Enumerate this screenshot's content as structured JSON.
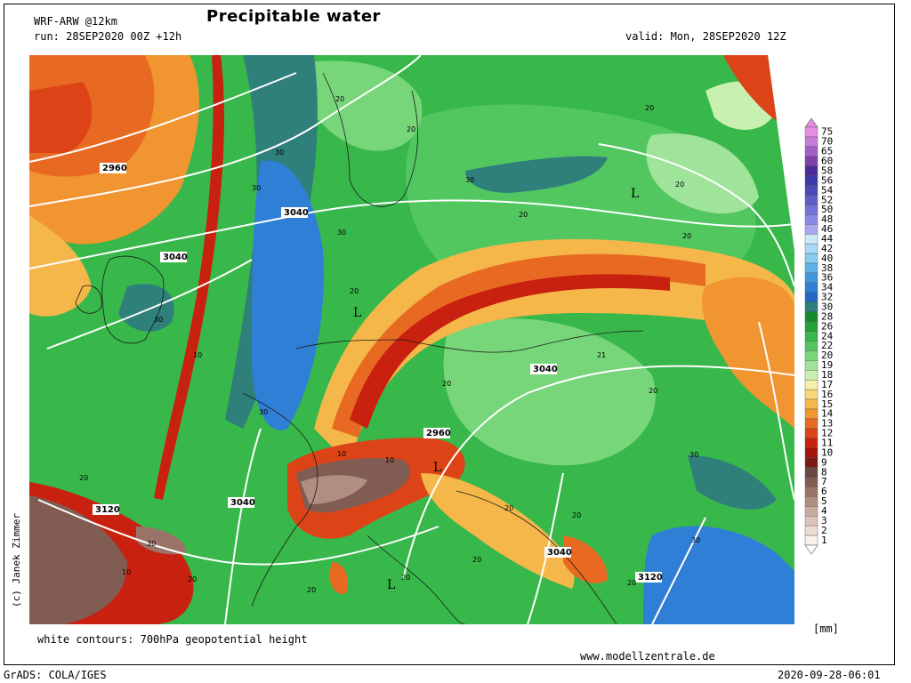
{
  "header": {
    "model": "WRF-ARW @12km",
    "title": "Precipitable water",
    "run": "run: 28SEP2020 00Z +12h",
    "valid": "valid: Mon, 28SEP2020 12Z"
  },
  "footer": {
    "contour_note": "white contours: 700hPa geopotential height",
    "website": "www.modellzentrale.de",
    "grads": "GrADS: COLA/IGES",
    "timestamp": "2020-09-28-06:01"
  },
  "credit": "(c) Janek Zimmer",
  "colorbar": {
    "unit": "[mm]",
    "levels": [
      "75",
      "70",
      "65",
      "60",
      "58",
      "56",
      "54",
      "52",
      "50",
      "48",
      "46",
      "44",
      "42",
      "40",
      "38",
      "36",
      "34",
      "32",
      "30",
      "28",
      "26",
      "24",
      "22",
      "20",
      "19",
      "18",
      "17",
      "16",
      "15",
      "14",
      "13",
      "12",
      "11",
      "10",
      "9",
      "8",
      "7",
      "6",
      "5",
      "4",
      "3",
      "2",
      "1"
    ],
    "colors": [
      "#e48ee4",
      "#c77ad6",
      "#a25fc4",
      "#7e42a8",
      "#4c2b9c",
      "#3a3aa8",
      "#4a4ab8",
      "#5e5ec9",
      "#7272d8",
      "#8a8ae6",
      "#a8a8f0",
      "#cbe9f6",
      "#a8dcf4",
      "#86cdf0",
      "#5eb3e8",
      "#3f98df",
      "#2f7fd6",
      "#2468c4",
      "#2f7f7a",
      "#148a2a",
      "#22a33a",
      "#38b84a",
      "#52c760",
      "#78d67a",
      "#a0e39a",
      "#c8f0b0",
      "#f5f1a8",
      "#f7d776",
      "#f5b74a",
      "#f09530",
      "#e86a22",
      "#dc4418",
      "#c9210f",
      "#a51208",
      "#7a1a10",
      "#6a4a40",
      "#805c52",
      "#9a7468",
      "#b08e82",
      "#c9ab9f",
      "#dbc4b9",
      "#ecdcd3",
      "#f8f0ea"
    ]
  },
  "map": {
    "pressure_labels": [
      "2960",
      "3040",
      "3040",
      "3040",
      "3040",
      "3120",
      "3040",
      "2960",
      "3120",
      "3040"
    ],
    "contour_labels": [
      "20",
      "20",
      "20",
      "20",
      "20",
      "20",
      "20",
      "20",
      "20",
      "20",
      "20",
      "20",
      "20",
      "20",
      "20",
      "20",
      "20",
      "30",
      "30",
      "30",
      "30",
      "30",
      "30",
      "30",
      "30",
      "30",
      "21",
      "10",
      "10",
      "10",
      "10",
      "10",
      "10"
    ],
    "lows": [
      "L",
      "L",
      "L",
      "L"
    ]
  }
}
